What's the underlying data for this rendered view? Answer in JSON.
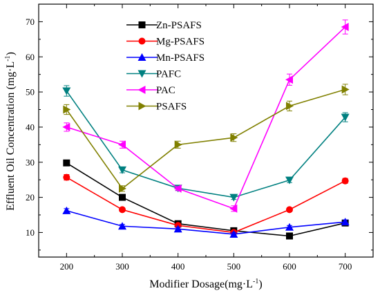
{
  "chart_data": {
    "type": "line",
    "xlabel": "Modifier Dosage(mg·L",
    "xlabel_sup": "-1",
    "xlabel_close": ")",
    "ylabel": "Effluent Oil Concentration (mg·L",
    "ylabel_sup": "-1",
    "ylabel_close": ")",
    "x": [
      200,
      300,
      400,
      500,
      600,
      700
    ],
    "xlim": [
      150,
      750
    ],
    "ylim": [
      3,
      75
    ],
    "xticks": [
      200,
      300,
      400,
      500,
      600,
      700
    ],
    "yticks": [
      10,
      20,
      30,
      40,
      50,
      60,
      70
    ],
    "grid": false,
    "legend_position": "top-left",
    "series": [
      {
        "name": "Zn-PSAFS",
        "color": "#000000",
        "marker": "square",
        "values": [
          29.8,
          20.0,
          12.5,
          10.5,
          9.0,
          12.7
        ],
        "errors": [
          0.8,
          0.5,
          0.5,
          0.5,
          0.5,
          0.5
        ]
      },
      {
        "name": "Mg-PSAFS",
        "color": "#ff0000",
        "marker": "circle",
        "values": [
          25.7,
          16.5,
          12.0,
          10.0,
          16.5,
          24.7
        ],
        "errors": [
          0.8,
          0.5,
          0.5,
          0.5,
          0.5,
          0.7
        ]
      },
      {
        "name": "Mn-PSAFS",
        "color": "#0000ff",
        "marker": "triangle-up",
        "values": [
          16.2,
          11.8,
          11.0,
          9.5,
          11.5,
          13.0
        ],
        "errors": [
          0.6,
          0.5,
          0.5,
          0.5,
          0.5,
          0.6
        ]
      },
      {
        "name": "PAFC",
        "color": "#008080",
        "marker": "triangle-down",
        "values": [
          50.3,
          27.8,
          22.6,
          20.0,
          24.9,
          42.8
        ],
        "errors": [
          1.5,
          0.8,
          0.6,
          0.6,
          0.7,
          1.3
        ]
      },
      {
        "name": "PAC",
        "color": "#ff00ff",
        "marker": "triangle-left",
        "values": [
          40.0,
          35.0,
          22.5,
          16.8,
          53.5,
          68.5
        ],
        "errors": [
          1.2,
          1.0,
          0.6,
          0.8,
          1.6,
          2.0
        ]
      },
      {
        "name": "PSAFS",
        "color": "#808000",
        "marker": "triangle-right",
        "values": [
          45.0,
          22.5,
          35.0,
          37.0,
          46.0,
          50.7
        ],
        "errors": [
          1.4,
          0.8,
          1.0,
          1.1,
          1.4,
          1.5
        ]
      }
    ]
  }
}
